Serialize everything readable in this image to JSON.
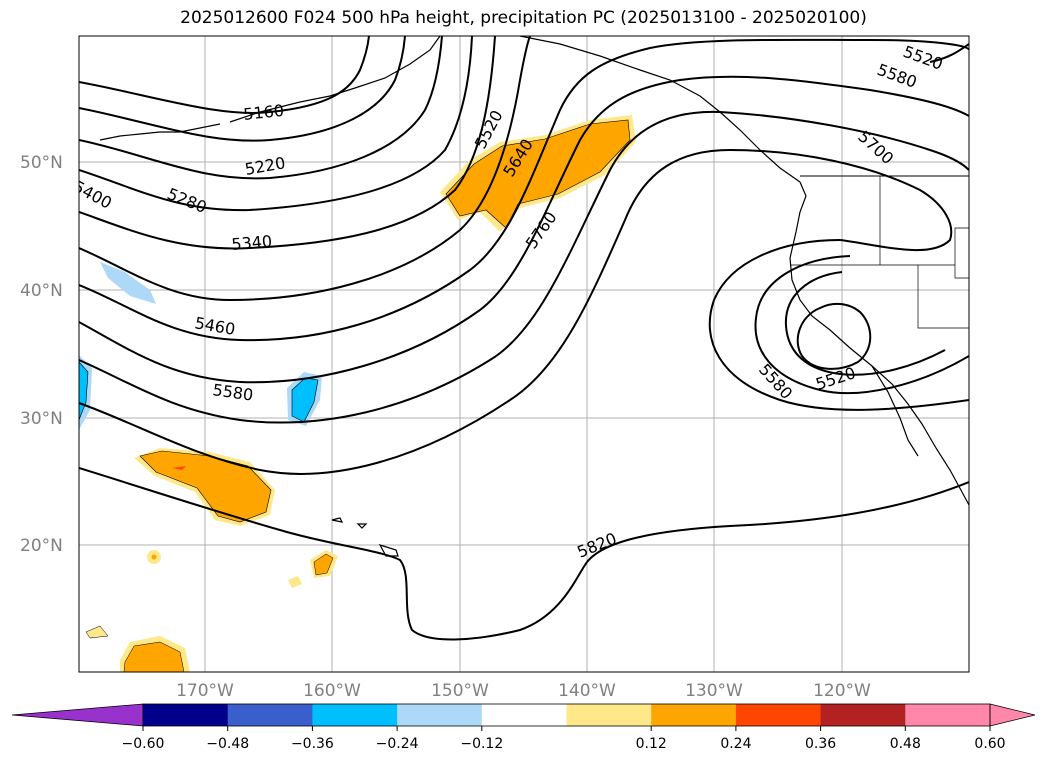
{
  "title": "2025012600 F024 500 hPa height, precipitation PC (2025013100 - 2025020100)",
  "map": {
    "lat_labels": [
      "50°N",
      "40°N",
      "30°N",
      "20°N"
    ],
    "lon_labels": [
      "170°W",
      "160°W",
      "150°W",
      "140°W",
      "130°W",
      "120°W"
    ],
    "contour_labels": [
      "5160",
      "5220",
      "5280",
      "5340",
      "5400",
      "5460",
      "5580",
      "5520",
      "5640",
      "5760",
      "5520",
      "5580",
      "5700",
      "5580",
      "5520",
      "5820"
    ],
    "colors": {
      "contour": "#000000",
      "grid": "#b0b0b0",
      "pos_024": "#ffa500",
      "pos_012": "#ffe88a",
      "pos_036": "#ff4500",
      "neg_024": "#00bfff",
      "neg_012": "#add8f7"
    }
  },
  "colorbar": {
    "ticks": [
      "−0.60",
      "−0.48",
      "−0.36",
      "−0.24",
      "−0.12",
      "0.12",
      "0.24",
      "0.36",
      "0.48",
      "0.60"
    ],
    "colors": [
      "#9932cc",
      "#00008b",
      "#3a5fcd",
      "#00bfff",
      "#add8f7",
      "#ffffff",
      "#ffe88a",
      "#ffa500",
      "#ff4500",
      "#b22222",
      "#ff88aa",
      "#ff88aa"
    ]
  }
}
